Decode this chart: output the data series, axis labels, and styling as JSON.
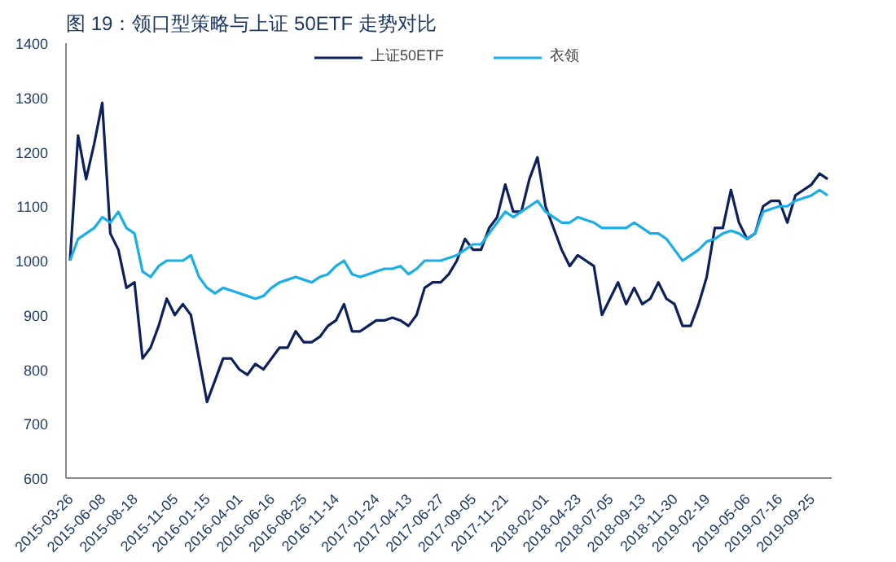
{
  "chart_data": {
    "type": "line",
    "title": "图 19：领口型策略与上证 50ETF 走势对比",
    "categories": [
      "2015-03-26",
      null,
      null,
      null,
      "2015-06-08",
      null,
      null,
      null,
      "2015-08-18",
      null,
      null,
      null,
      null,
      "2015-11-05",
      null,
      null,
      null,
      "2016-01-15",
      null,
      null,
      null,
      "2016-04-01",
      null,
      null,
      null,
      "2016-06-16",
      null,
      null,
      null,
      "2016-08-25",
      null,
      null,
      null,
      "2016-11-14",
      null,
      null,
      null,
      null,
      "2017-01-24",
      null,
      null,
      null,
      "2017-04-13",
      null,
      null,
      null,
      "2017-06-27",
      null,
      null,
      null,
      "2017-09-05",
      null,
      null,
      null,
      "2017-11-21",
      null,
      null,
      null,
      null,
      "2018-02-01",
      null,
      null,
      null,
      "2018-04-23",
      null,
      null,
      null,
      "2018-07-05",
      null,
      null,
      null,
      "2018-09-13",
      null,
      null,
      null,
      "2018-11-30",
      null,
      null,
      null,
      "2019-02-19",
      null,
      null,
      null,
      null,
      "2019-05-06",
      null,
      null,
      null,
      "2019-07-16",
      null,
      null,
      null,
      "2019-09-25",
      null,
      null
    ],
    "series": [
      {
        "name": "上证50ETF",
        "color": "#0d1f5c",
        "values": [
          1000,
          1230,
          1150,
          1215,
          1290,
          1050,
          1020,
          950,
          960,
          820,
          840,
          880,
          930,
          900,
          920,
          900,
          820,
          740,
          780,
          820,
          820,
          800,
          790,
          810,
          800,
          820,
          840,
          840,
          870,
          850,
          850,
          860,
          880,
          890,
          920,
          870,
          870,
          880,
          890,
          890,
          895,
          890,
          880,
          900,
          950,
          960,
          960,
          975,
          1000,
          1040,
          1020,
          1020,
          1060,
          1080,
          1140,
          1090,
          1090,
          1150,
          1190,
          1100,
          1060,
          1020,
          990,
          1010,
          1000,
          990,
          900,
          930,
          960,
          920,
          950,
          920,
          930,
          960,
          930,
          920,
          880,
          880,
          920,
          970,
          1060,
          1060,
          1130,
          1070,
          1040,
          1050,
          1100,
          1110,
          1110,
          1070,
          1120,
          1130,
          1140,
          1160,
          1150
        ]
      },
      {
        "name": "衣领",
        "color": "#1aaee8",
        "values": [
          1000,
          1040,
          1050,
          1060,
          1080,
          1070,
          1090,
          1060,
          1050,
          980,
          970,
          990,
          1000,
          1000,
          1000,
          1010,
          970,
          950,
          940,
          950,
          945,
          940,
          935,
          930,
          935,
          950,
          960,
          965,
          970,
          965,
          960,
          970,
          975,
          990,
          1000,
          975,
          970,
          975,
          980,
          985,
          985,
          990,
          975,
          985,
          1000,
          1000,
          1000,
          1005,
          1010,
          1020,
          1030,
          1030,
          1050,
          1070,
          1090,
          1080,
          1090,
          1100,
          1110,
          1090,
          1080,
          1070,
          1070,
          1080,
          1075,
          1070,
          1060,
          1060,
          1060,
          1060,
          1070,
          1060,
          1050,
          1050,
          1040,
          1020,
          1000,
          1010,
          1020,
          1035,
          1040,
          1050,
          1055,
          1050,
          1040,
          1050,
          1090,
          1095,
          1100,
          1100,
          1110,
          1115,
          1120,
          1130,
          1120
        ]
      }
    ],
    "ylim": [
      600,
      1400
    ],
    "yticks": [
      600,
      700,
      800,
      900,
      1000,
      1100,
      1200,
      1300,
      1400
    ],
    "grid": false,
    "legend": "top",
    "line_style": "solid",
    "marker": "none"
  }
}
